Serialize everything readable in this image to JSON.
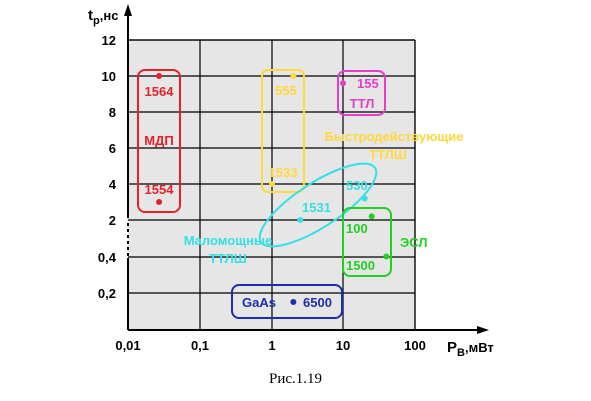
{
  "chart_data": {
    "type": "scatter",
    "xlabel": "P",
    "xlabel_sub": "В",
    "xlabel_unit": ",мВт",
    "ylabel": "t",
    "ylabel_sub": "p",
    "ylabel_unit": ",нс",
    "x_scale": "log",
    "x_ticks": [
      "0,01",
      "0,1",
      "1",
      "10",
      "100"
    ],
    "x_tick_values": [
      0.01,
      0.1,
      1,
      10,
      100
    ],
    "y_ticks": [
      "0,2",
      "0,4",
      "2",
      "4",
      "6",
      "8",
      "10",
      "12"
    ],
    "grid": true,
    "plot_background": "#e6e6e6",
    "groups": [
      {
        "name": "МДП",
        "color": "#e8202a",
        "points": [
          {
            "label": "1564",
            "x": 0.027,
            "y": 10
          },
          {
            "label": "1554",
            "x": 0.027,
            "y": 3
          }
        ]
      },
      {
        "name": "Быстродействующие ТТЛШ",
        "name_lines": [
          "Быстродействующие",
          "ТТЛШ"
        ],
        "color": "#ffd83a",
        "points": [
          {
            "label": "555",
            "x": 2,
            "y": 10
          },
          {
            "label": "1533",
            "x": 1,
            "y": 4
          }
        ]
      },
      {
        "name": "ТТЛ",
        "color": "#e63ec8",
        "points": [
          {
            "label": "155",
            "x": 10,
            "y": 9.6
          }
        ]
      },
      {
        "name": "Маломощные ТТЛШ",
        "name_lines": [
          "Маломощные",
          "ТТЛШ"
        ],
        "color": "#33e0e8",
        "points": [
          {
            "label": "1531",
            "x": 2.5,
            "y": 2
          },
          {
            "label": "530",
            "x": 20,
            "y": 3.2
          }
        ]
      },
      {
        "name": "ЭСЛ",
        "color": "#22d022",
        "points": [
          {
            "label": "100",
            "x": 25,
            "y": 2.2
          },
          {
            "label": "1500",
            "x": 40,
            "y": 0.42
          }
        ]
      },
      {
        "name": "GaAs",
        "color": "#1c2db0",
        "points": [
          {
            "label": "6500",
            "x": 2,
            "y": 0.15
          }
        ]
      }
    ]
  },
  "caption": "Рис.1.19"
}
